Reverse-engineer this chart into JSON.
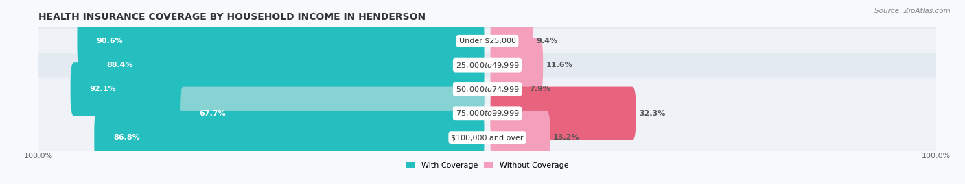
{
  "title": "HEALTH INSURANCE COVERAGE BY HOUSEHOLD INCOME IN HENDERSON",
  "source": "Source: ZipAtlas.com",
  "categories": [
    "Under $25,000",
    "$25,000 to $49,999",
    "$50,000 to $74,999",
    "$75,000 to $99,999",
    "$100,000 and over"
  ],
  "with_coverage": [
    90.6,
    88.4,
    92.1,
    67.7,
    86.8
  ],
  "without_coverage": [
    9.4,
    11.6,
    7.9,
    32.3,
    13.2
  ],
  "color_with": "#26bfbf",
  "color_with_light": "#87d3d3",
  "color_without_light": "#f4a0bc",
  "color_without_dark": "#e8637e",
  "bar_height": 0.62,
  "legend_with": "With Coverage",
  "legend_without": "Without Coverage",
  "row_bg_light": "#eff3f7",
  "row_bg_dark": "#e3eaf1",
  "fig_bg": "#f7f9fc",
  "title_fontsize": 10,
  "label_fontsize": 8,
  "tick_fontsize": 8
}
